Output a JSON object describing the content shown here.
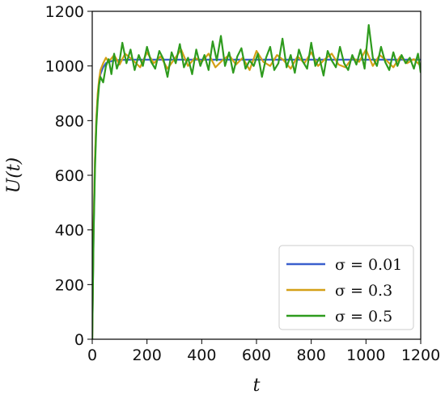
{
  "chart_data": {
    "type": "line",
    "xlabel": "t",
    "ylabel": "U(t)",
    "xlim": [
      0,
      1200
    ],
    "ylim": [
      0,
      1200
    ],
    "xticks": [
      0,
      200,
      400,
      600,
      800,
      1000,
      1200
    ],
    "yticks": [
      0,
      200,
      400,
      600,
      800,
      1000,
      1200
    ],
    "grid": false,
    "legend_position": "lower-right",
    "series": [
      {
        "name": "σ = 0.01",
        "color": "#3a5fcd",
        "x": [
          0,
          5,
          10,
          15,
          20,
          25,
          30,
          40,
          50,
          60,
          80,
          100,
          150,
          200,
          300,
          400,
          500,
          600,
          700,
          800,
          900,
          1000,
          1100,
          1200
        ],
        "values": [
          0,
          400,
          650,
          800,
          890,
          940,
          970,
          995,
          1010,
          1015,
          1020,
          1022,
          1023,
          1023,
          1023,
          1023,
          1023,
          1023,
          1023,
          1023,
          1023,
          1023,
          1023,
          1023
        ]
      },
      {
        "name": "σ = 0.3",
        "color": "#d4a017",
        "x": [
          0,
          5,
          10,
          15,
          20,
          25,
          30,
          40,
          50,
          60,
          80,
          100,
          120,
          150,
          175,
          200,
          225,
          250,
          275,
          300,
          325,
          350,
          375,
          400,
          425,
          450,
          475,
          500,
          525,
          550,
          575,
          600,
          625,
          650,
          675,
          700,
          725,
          750,
          775,
          800,
          825,
          850,
          875,
          900,
          925,
          950,
          975,
          1000,
          1025,
          1050,
          1075,
          1100,
          1125,
          1150,
          1175,
          1200
        ],
        "values": [
          0,
          420,
          660,
          810,
          900,
          950,
          985,
          1010,
          1030,
          1015,
          1040,
          1005,
          1045,
          1020,
          995,
          1050,
          1010,
          1035,
          990,
          1025,
          1060,
          1000,
          1030,
          1015,
          1045,
          995,
          1020,
          1040,
          1005,
          1030,
          985,
          1055,
          1015,
          1000,
          1040,
          1020,
          990,
          1035,
          1010,
          1050,
          1000,
          1025,
          1045,
          1005,
          995,
          1030,
          1015,
          1060,
          1000,
          1040,
          1020,
          995,
          1035,
          1010,
          1025,
          1000
        ]
      },
      {
        "name": "σ = 0.5",
        "color": "#2e9b1e",
        "x": [
          0,
          5,
          10,
          15,
          20,
          25,
          30,
          40,
          50,
          60,
          70,
          80,
          90,
          100,
          110,
          125,
          140,
          155,
          170,
          185,
          200,
          215,
          230,
          245,
          260,
          275,
          290,
          305,
          320,
          335,
          350,
          365,
          380,
          395,
          410,
          425,
          440,
          455,
          470,
          485,
          500,
          515,
          530,
          545,
          560,
          575,
          590,
          605,
          620,
          635,
          650,
          665,
          680,
          695,
          710,
          725,
          740,
          755,
          770,
          785,
          800,
          815,
          830,
          845,
          860,
          875,
          890,
          905,
          920,
          935,
          950,
          965,
          980,
          995,
          1010,
          1025,
          1040,
          1055,
          1070,
          1085,
          1100,
          1115,
          1130,
          1145,
          1160,
          1175,
          1190,
          1200
        ],
        "values": [
          0,
          380,
          620,
          780,
          870,
          930,
          960,
          940,
          1000,
          1025,
          970,
          1045,
          990,
          1020,
          1085,
          1010,
          1060,
          985,
          1040,
          1000,
          1070,
          1015,
          990,
          1055,
          1025,
          960,
          1050,
          1010,
          1080,
          995,
          1030,
          970,
          1060,
          1000,
          1040,
          985,
          1090,
          1020,
          1110,
          1000,
          1050,
          975,
          1035,
          1065,
          990,
          1020,
          1000,
          1045,
          960,
          1030,
          1070,
          985,
          1010,
          1100,
          995,
          1040,
          975,
          1060,
          1015,
          990,
          1085,
          1000,
          1030,
          965,
          1055,
          1020,
          995,
          1070,
          1010,
          985,
          1040,
          1005,
          1060,
          990,
          1150,
          1030,
          1000,
          1070,
          1015,
          985,
          1050,
          1000,
          1040,
          1010,
          1030,
          990,
          1045,
          975
        ]
      }
    ]
  }
}
